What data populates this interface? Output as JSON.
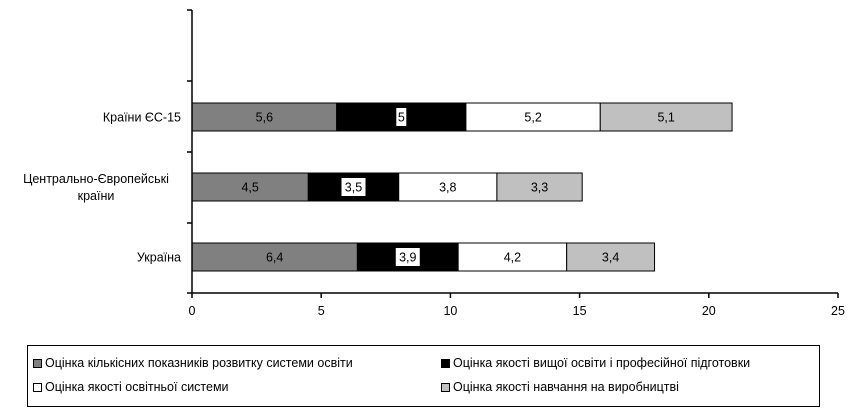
{
  "chart_data": {
    "type": "bar",
    "orientation": "horizontal",
    "stacked": true,
    "categories": [
      "Країни ЄС-15",
      "Центрально-Європейські країни",
      "Україна"
    ],
    "series": [
      {
        "name": "Оцінка кількісних показників розвитку системи освіти",
        "values": [
          5.6,
          4.5,
          6.4
        ],
        "labels": [
          "5,6",
          "4,5",
          "6,4"
        ],
        "color": "#808080"
      },
      {
        "name": "Оцінка якості вищої освіти і професійної підготовки",
        "values": [
          5,
          3.5,
          3.9
        ],
        "labels": [
          "5",
          "3,5",
          "3,9"
        ],
        "color": "#000000"
      },
      {
        "name": "Оцінка якості освітньої системи",
        "values": [
          5.2,
          3.8,
          4.2
        ],
        "labels": [
          "5,2",
          "3,8",
          "4,2"
        ],
        "color": "#ffffff"
      },
      {
        "name": "Оцінка якості навчання на виробництві",
        "values": [
          5.1,
          3.3,
          3.4
        ],
        "labels": [
          "5,1",
          "3,3",
          "3,4"
        ],
        "color": "#c0c0c0"
      }
    ],
    "xlim": [
      0,
      25
    ],
    "xticks": [
      0,
      5,
      10,
      15,
      20,
      25
    ],
    "xtick_labels": [
      "0",
      "5",
      "10",
      "15",
      "20",
      "25"
    ],
    "grid": false,
    "legend_position": "bottom"
  }
}
